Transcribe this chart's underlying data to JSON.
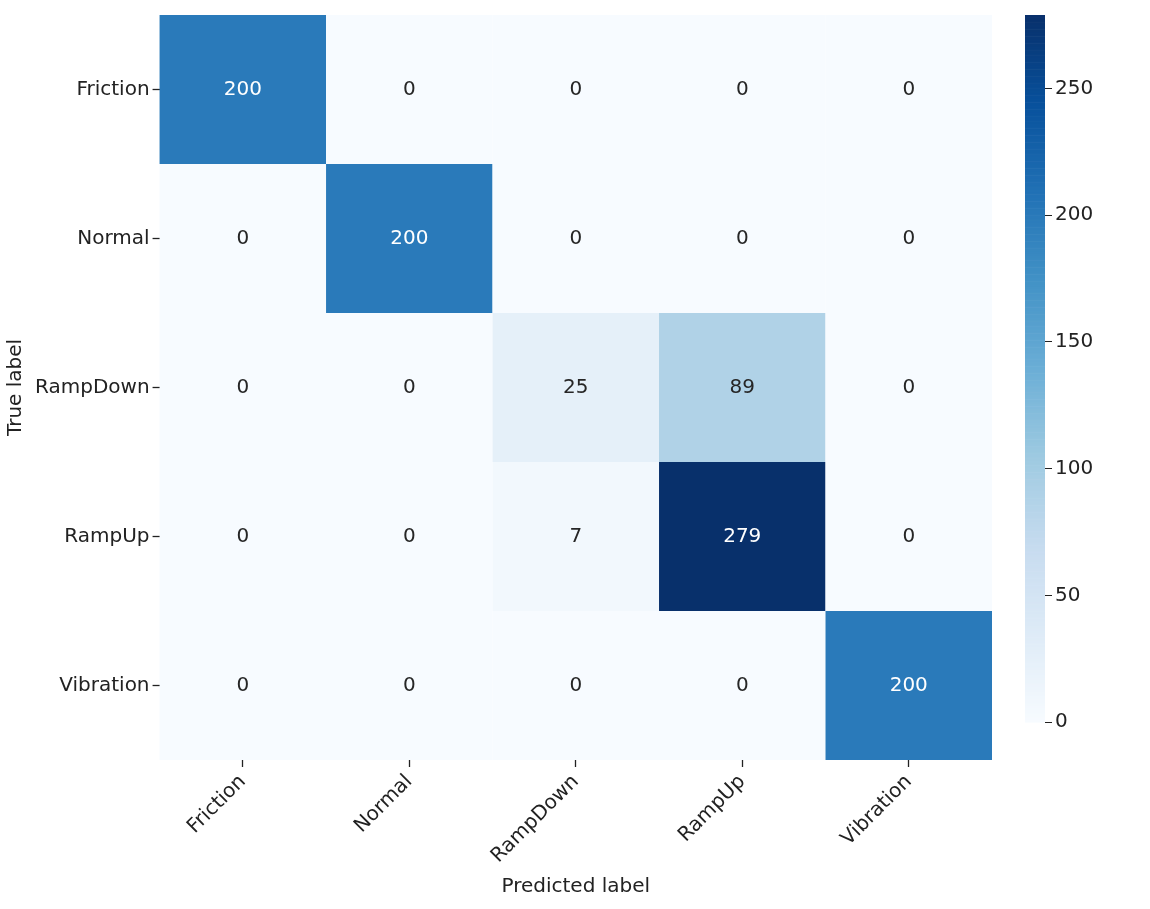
{
  "chart_data": {
    "type": "heatmap",
    "xlabel": "Predicted label",
    "ylabel": "True label",
    "categories": [
      "Friction",
      "Normal",
      "RampDown",
      "RampUp",
      "Vibration"
    ],
    "y_categories": [
      "Friction",
      "Normal",
      "RampDown",
      "RampUp",
      "Vibration"
    ],
    "cells": [
      [
        200,
        0,
        0,
        0,
        0
      ],
      [
        0,
        200,
        0,
        0,
        0
      ],
      [
        0,
        0,
        25,
        89,
        0
      ],
      [
        0,
        0,
        7,
        279,
        0
      ],
      [
        0,
        0,
        0,
        0,
        200
      ]
    ],
    "clim": [
      0,
      279
    ],
    "cticks": [
      0,
      50,
      100,
      150,
      200,
      250
    ],
    "data_labels": true
  }
}
